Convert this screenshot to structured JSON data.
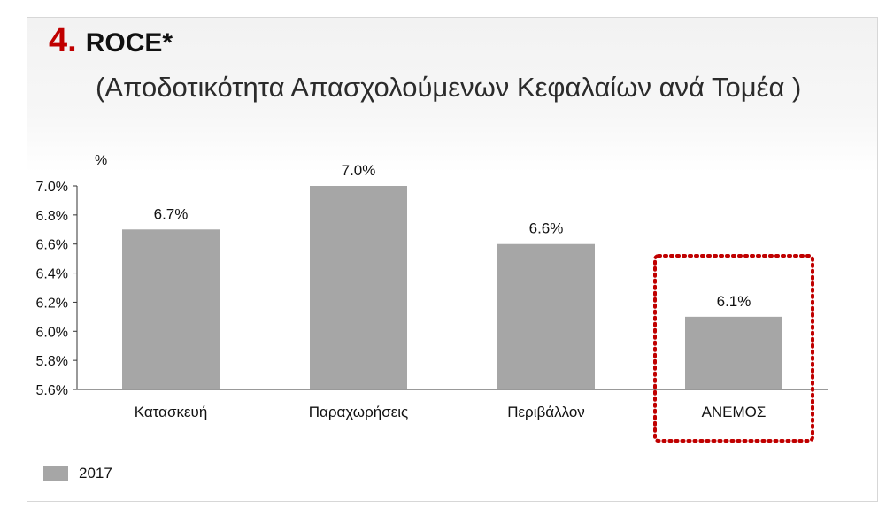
{
  "title": {
    "number": "4.",
    "main": "ROCE*",
    "subtitle": "(Αποδοτικότητα Απασχολούμενων Κεφαλαίων ανά Τομέα )"
  },
  "chart_data": {
    "type": "bar",
    "title": "ROCE* (Αποδοτικότητα Απασχολούμενων Κεφαλαίων ανά Τομέα )",
    "ylabel": "%",
    "xlabel": "",
    "categories": [
      "Κατασκευή",
      "Παραχωρήσεις",
      "Περιβάλλον",
      "ΑΝΕΜΟΣ"
    ],
    "series": [
      {
        "name": "2017",
        "values": [
          6.7,
          7.0,
          6.6,
          6.1
        ],
        "labels": [
          "6.7%",
          "7.0%",
          "6.6%",
          "6.1%"
        ],
        "color": "#a6a6a6"
      }
    ],
    "ylim": [
      5.6,
      7.0
    ],
    "yticks": [
      5.6,
      5.8,
      6.0,
      6.2,
      6.4,
      6.6,
      6.8,
      7.0
    ],
    "ytick_labels": [
      "5.6%",
      "5.8%",
      "6.0%",
      "6.2%",
      "6.4%",
      "6.6%",
      "6.8%",
      "7.0%"
    ],
    "highlighted_category": "ΑΝΕΜΟΣ",
    "highlight_color": "#c00000",
    "grid": false,
    "legend_position": "bottom-left"
  }
}
